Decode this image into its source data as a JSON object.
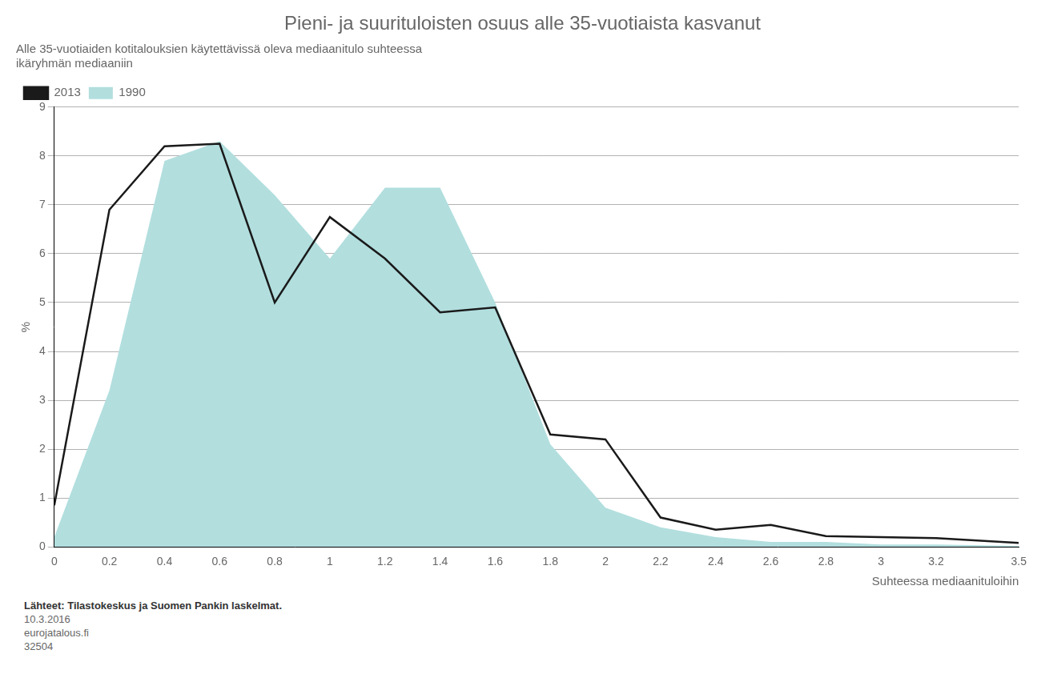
{
  "chart_data": {
    "type": "line",
    "title": "Pieni- ja suurituloisten osuus alle 35-vuotiaista kasvanut",
    "subtitle": [
      "Alle 35-vuotiaiden kotitalouksien käytettävissä oleva mediaanitulo suhteessa",
      "ikäryhmän mediaaniin"
    ],
    "xlabel": "Suhteessa mediaanituloihin",
    "ylabel": "%",
    "source": [
      "Lähteet: Tilastokeskus ja Suomen Pankin laskelmat.",
      "10.3.2016",
      "eurojatalous.fi",
      "32504"
    ],
    "x": [
      0,
      0.2,
      0.4,
      0.6,
      0.8,
      1.0,
      1.2,
      1.4,
      1.6,
      1.8,
      2.0,
      2.2,
      2.4,
      2.6,
      2.8,
      3.0,
      3.2,
      3.5
    ],
    "series": [
      {
        "name": "1990",
        "type": "area",
        "color": "#b2dede",
        "values": [
          0.2,
          3.2,
          7.9,
          8.3,
          7.2,
          5.9,
          7.35,
          7.35,
          5.0,
          2.1,
          0.8,
          0.4,
          0.2,
          0.1,
          0.1,
          0.05,
          0.05,
          0.02
        ]
      },
      {
        "name": "2013",
        "type": "line",
        "color": "#1a1a1a",
        "values": [
          0.85,
          6.9,
          8.2,
          8.25,
          5.0,
          6.75,
          5.9,
          4.8,
          4.9,
          2.3,
          2.2,
          0.6,
          0.35,
          0.45,
          0.22,
          0.2,
          0.18,
          0.08
        ]
      }
    ],
    "xlim": [
      0,
      3.5
    ],
    "ylim": [
      0,
      9
    ],
    "xticks": [
      0,
      0.2,
      0.4,
      0.6,
      0.8,
      1,
      1.2,
      1.4,
      1.6,
      1.8,
      2,
      2.2,
      2.4,
      2.6,
      2.8,
      3,
      3.2,
      3.5
    ],
    "yticks": [
      0,
      1,
      2,
      3,
      4,
      5,
      6,
      7,
      8,
      9
    ],
    "grid": "y",
    "legend": "top left"
  }
}
